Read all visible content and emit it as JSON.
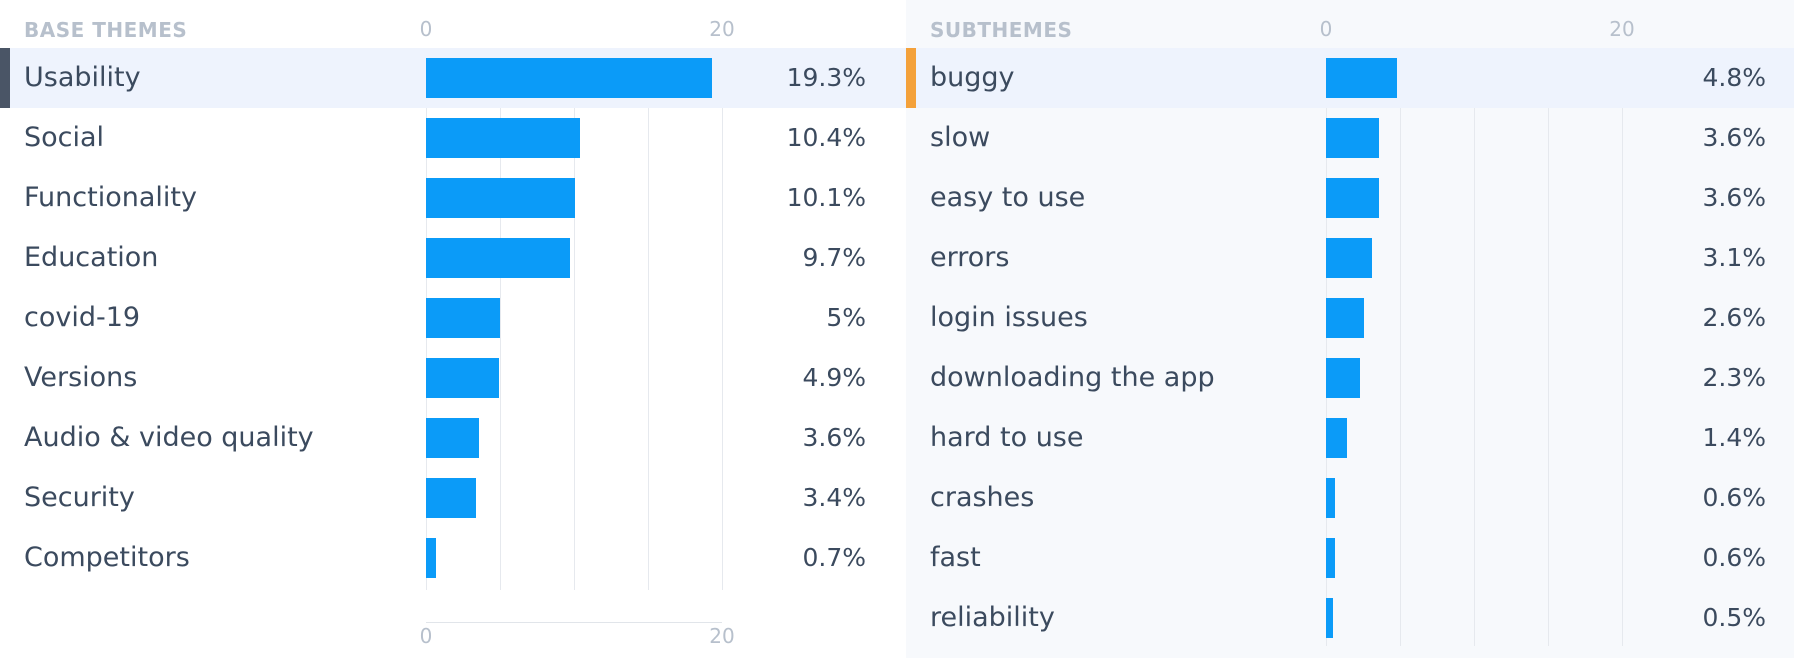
{
  "chart_data": [
    {
      "type": "bar",
      "orientation": "horizontal",
      "title": "BASE THEMES",
      "categories": [
        "Usability",
        "Social",
        "Functionality",
        "Education",
        "covid-19",
        "Versions",
        "Audio & video quality",
        "Security",
        "Competitors"
      ],
      "values": [
        19.3,
        10.4,
        10.1,
        9.7,
        5,
        4.9,
        3.6,
        3.4,
        0.7
      ],
      "value_labels": [
        "19.3%",
        "10.4%",
        "10.1%",
        "9.7%",
        "5%",
        "4.9%",
        "3.6%",
        "3.4%",
        "0.7%"
      ],
      "xlim": [
        0,
        20
      ],
      "x_ticks": [
        0,
        20
      ],
      "x_tick_labels": [
        "0",
        "20"
      ],
      "selected": "Usability",
      "grid": true,
      "bar_color": "#0b9bf8",
      "marker_color": "#4a5566"
    },
    {
      "type": "bar",
      "orientation": "horizontal",
      "title": "SUBTHEMES",
      "categories": [
        "buggy",
        "slow",
        "easy to use",
        "errors",
        "login issues",
        "downloading the app",
        "hard to use",
        "crashes",
        "fast",
        "reliability"
      ],
      "values": [
        4.8,
        3.6,
        3.6,
        3.1,
        2.6,
        2.3,
        1.4,
        0.6,
        0.6,
        0.5
      ],
      "value_labels": [
        "4.8%",
        "3.6%",
        "3.6%",
        "3.1%",
        "2.6%",
        "2.3%",
        "1.4%",
        "0.6%",
        "0.6%",
        "0.5%"
      ],
      "xlim": [
        0,
        20
      ],
      "x_ticks": [
        0,
        20
      ],
      "x_tick_labels": [
        "0",
        "20"
      ],
      "selected": "buggy",
      "grid": true,
      "bar_color": "#0b9bf8",
      "marker_color": "#f4a13a"
    }
  ]
}
